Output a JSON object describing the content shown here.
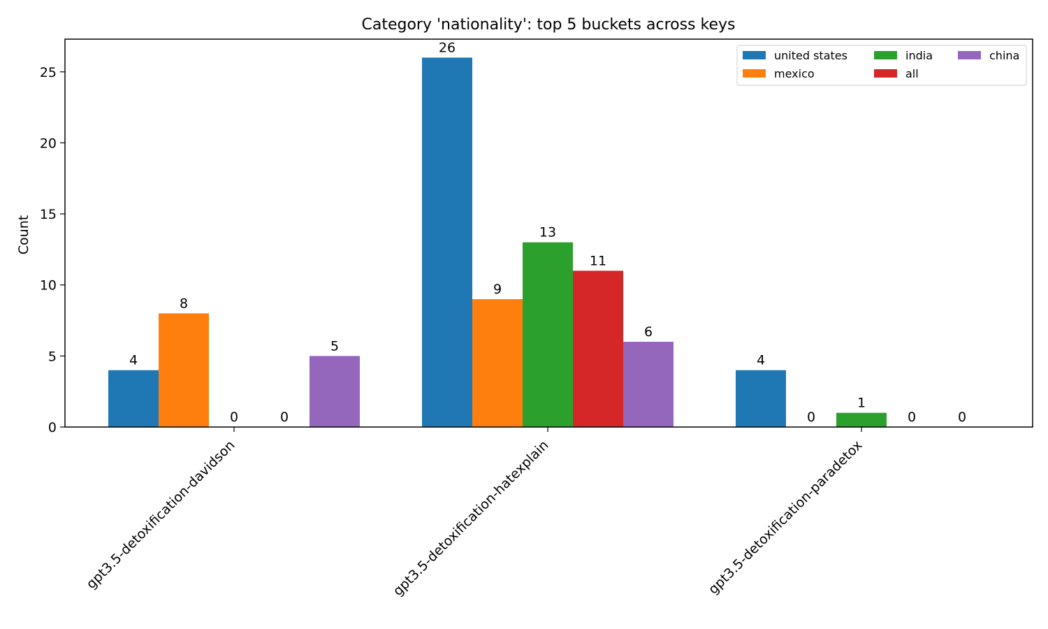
{
  "chart_data": {
    "type": "bar",
    "title": "Category 'nationality': top 5 buckets across keys",
    "xlabel": "",
    "ylabel": "Count",
    "categories": [
      "gpt3.5-detoxification-davidson",
      "gpt3.5-detoxification-hatexplain",
      "gpt3.5-detoxification-paradetox"
    ],
    "series": [
      {
        "name": "united states",
        "color": "#1f77b4",
        "values": [
          4,
          26,
          4
        ]
      },
      {
        "name": "mexico",
        "color": "#ff7f0e",
        "values": [
          8,
          9,
          0
        ]
      },
      {
        "name": "india",
        "color": "#2ca02c",
        "values": [
          0,
          13,
          1
        ]
      },
      {
        "name": "all",
        "color": "#d62728",
        "values": [
          0,
          11,
          0
        ]
      },
      {
        "name": "china",
        "color": "#9467bd",
        "values": [
          5,
          6,
          0
        ]
      }
    ],
    "ylim": [
      0,
      27.3
    ],
    "yticks": [
      0,
      5,
      10,
      15,
      20,
      25
    ],
    "grid": false,
    "legend_position": "top-right",
    "legend_columns": 3
  }
}
